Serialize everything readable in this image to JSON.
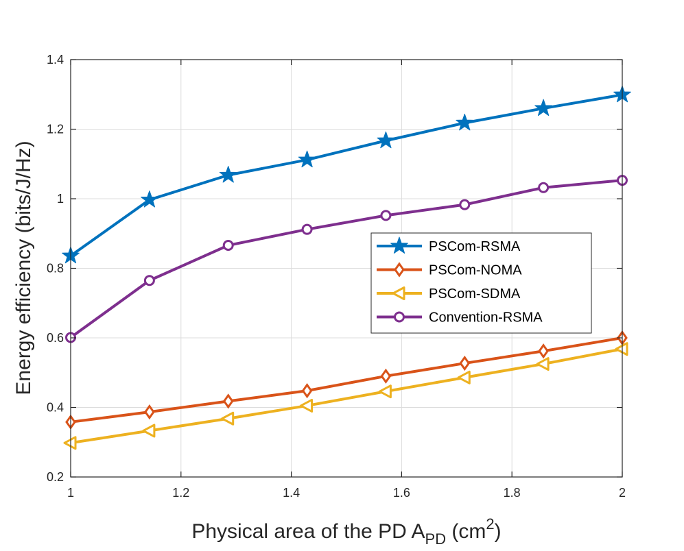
{
  "chart_data": {
    "type": "line",
    "title": "",
    "xlabel": {
      "main": "Physical area of the PD A",
      "subscript": "PD",
      "unit_open": " (cm",
      "superscript": "2",
      "unit_close": ")"
    },
    "ylabel": "Energy efficiency (bits/J/Hz)",
    "xlim": [
      1,
      2
    ],
    "ylim": [
      0.2,
      1.4
    ],
    "xticks": [
      1,
      1.2,
      1.4,
      1.6,
      1.8,
      2
    ],
    "xtick_labels": [
      "1",
      "1.2",
      "1.4",
      "1.6",
      "1.8",
      "2"
    ],
    "yticks": [
      0.2,
      0.4,
      0.6,
      0.8,
      1.0,
      1.2,
      1.4
    ],
    "ytick_labels": [
      "0.2",
      "0.4",
      "0.6",
      "0.8",
      "1",
      "1.2",
      "1.4"
    ],
    "grid": true,
    "legend_position": "center-right",
    "x": [
      1,
      1.1429,
      1.2857,
      1.4286,
      1.5714,
      1.7143,
      1.8571,
      2
    ],
    "series": [
      {
        "name": "PSCom-RSMA",
        "color": "#0072BD",
        "marker": "star",
        "values": [
          0.836,
          0.997,
          1.068,
          1.112,
          1.167,
          1.218,
          1.26,
          1.299
        ]
      },
      {
        "name": "PSCom-NOMA",
        "color": "#D95319",
        "marker": "diamond",
        "values": [
          0.358,
          0.387,
          0.418,
          0.448,
          0.49,
          0.527,
          0.562,
          0.6
        ]
      },
      {
        "name": "PSCom-SDMA",
        "color": "#EDB120",
        "marker": "triangle-left",
        "values": [
          0.298,
          0.333,
          0.368,
          0.405,
          0.446,
          0.486,
          0.525,
          0.568
        ]
      },
      {
        "name": "Convention-RSMA",
        "color": "#7E2F8E",
        "marker": "circle",
        "values": [
          0.601,
          0.765,
          0.866,
          0.912,
          0.952,
          0.983,
          1.032,
          1.053
        ]
      }
    ]
  }
}
